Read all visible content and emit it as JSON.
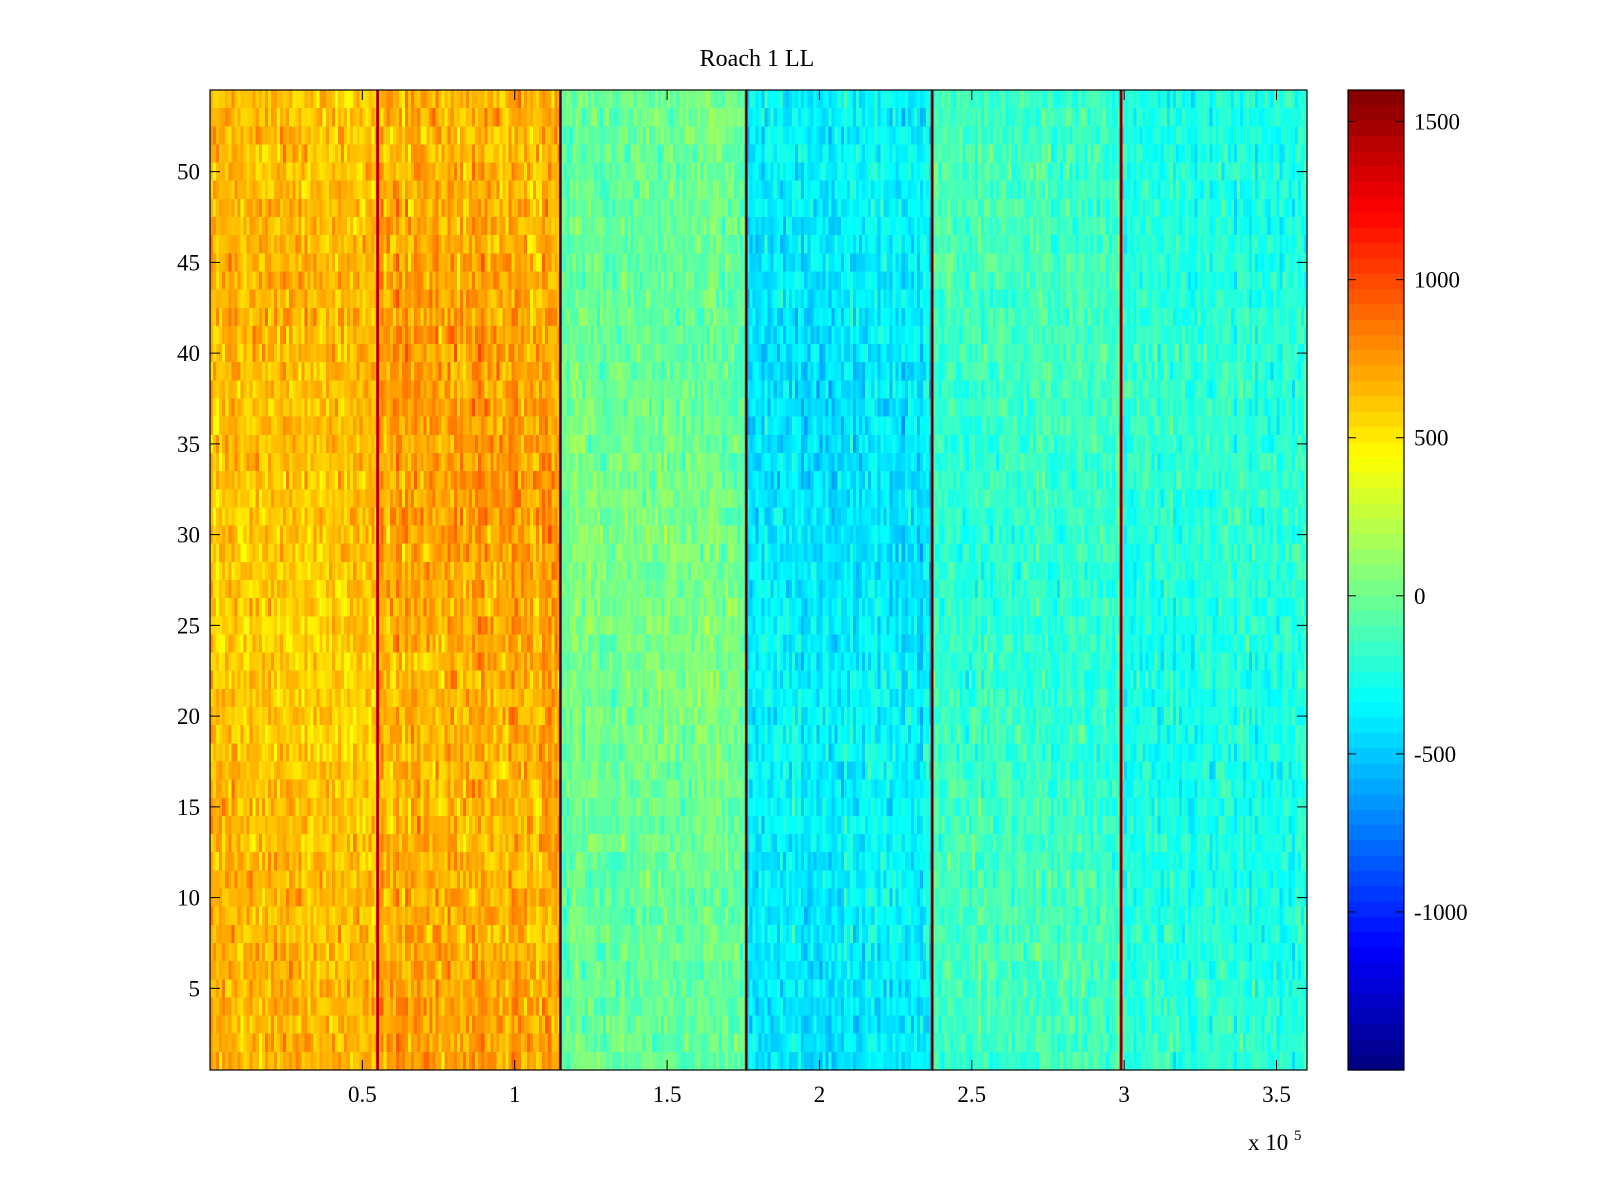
{
  "chart_data": {
    "type": "heatmap",
    "title": "Roach 1 LL",
    "xlabel": "",
    "ylabel": "",
    "x_multiplier_label": "x 10",
    "x_multiplier_exponent": "5",
    "xlim": [
      0,
      3.6
    ],
    "ylim": [
      0.5,
      54.5
    ],
    "x_ticks": [
      {
        "value": 0.5,
        "label": "0.5"
      },
      {
        "value": 1,
        "label": "1"
      },
      {
        "value": 1.5,
        "label": "1.5"
      },
      {
        "value": 2,
        "label": "2"
      },
      {
        "value": 2.5,
        "label": "2.5"
      },
      {
        "value": 3,
        "label": "3"
      },
      {
        "value": 3.5,
        "label": "3.5"
      }
    ],
    "y_ticks": [
      {
        "value": 5,
        "label": "5"
      },
      {
        "value": 10,
        "label": "10"
      },
      {
        "value": 15,
        "label": "15"
      },
      {
        "value": 20,
        "label": "20"
      },
      {
        "value": 25,
        "label": "25"
      },
      {
        "value": 30,
        "label": "30"
      },
      {
        "value": 35,
        "label": "35"
      },
      {
        "value": 40,
        "label": "40"
      },
      {
        "value": 45,
        "label": "45"
      },
      {
        "value": 50,
        "label": "50"
      }
    ],
    "colorbar": {
      "colormap": "jet",
      "clim": [
        -1500,
        1600
      ],
      "ticks": [
        {
          "value": 1500,
          "label": "1500"
        },
        {
          "value": 1000,
          "label": "1000"
        },
        {
          "value": 500,
          "label": "500"
        },
        {
          "value": 0,
          "label": "0"
        },
        {
          "value": -500,
          "label": "-500"
        },
        {
          "value": -1000,
          "label": "-1000"
        }
      ]
    },
    "rows": 54,
    "segments": [
      {
        "x_start": 0,
        "x_end": 0.55,
        "mean_value": 620,
        "spread": 170
      },
      {
        "x_start": 0.55,
        "x_end": 1.15,
        "mean_value": 700,
        "spread": 190
      },
      {
        "x_start": 1.15,
        "x_end": 1.76,
        "mean_value": 0,
        "spread": 160
      },
      {
        "x_start": 1.76,
        "x_end": 2.37,
        "mean_value": -380,
        "spread": 170
      },
      {
        "x_start": 2.37,
        "x_end": 2.99,
        "mean_value": -160,
        "spread": 160
      },
      {
        "x_start": 2.99,
        "x_end": 3.6,
        "mean_value": -230,
        "spread": 160
      }
    ],
    "boundaries": [
      {
        "x": 0.55,
        "value": 1600
      },
      {
        "x": 1.15,
        "value": 1600
      },
      {
        "x": 1.76,
        "value": 1600
      },
      {
        "x": 2.37,
        "value": 1600
      },
      {
        "x": 2.99,
        "value": 1600
      }
    ],
    "frame_color": "#000000"
  }
}
